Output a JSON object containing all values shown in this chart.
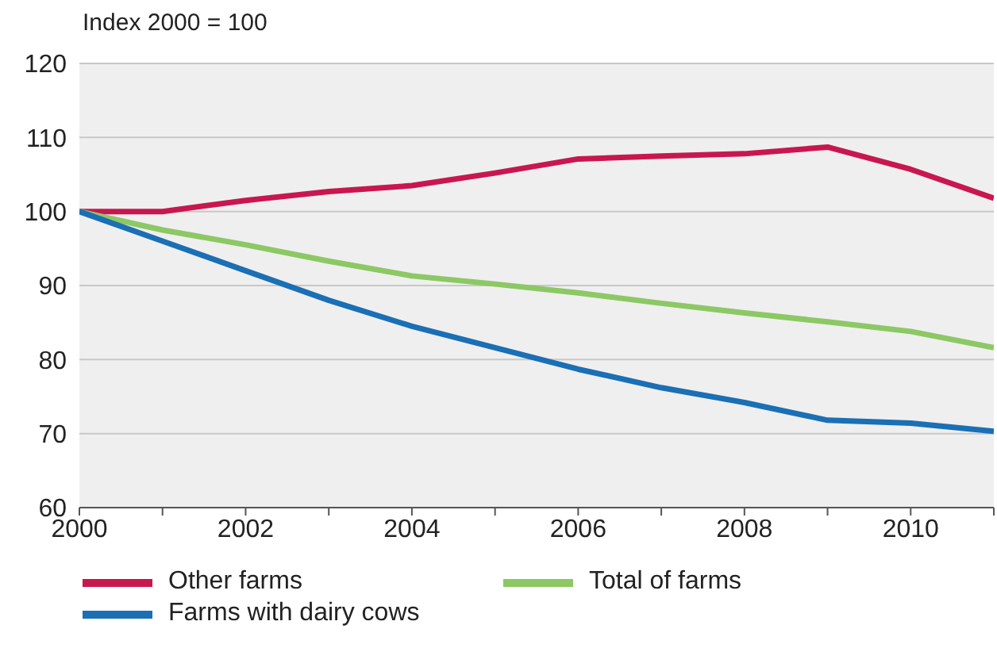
{
  "chart_data": {
    "type": "line",
    "ylabel": "Index 2000 = 100",
    "x": [
      2000,
      2001,
      2002,
      2003,
      2004,
      2005,
      2006,
      2007,
      2008,
      2009,
      2010,
      2011
    ],
    "series": [
      {
        "name": "Other farms",
        "color": "#c8174f",
        "values": [
          100,
          100,
          101.5,
          102.7,
          103.5,
          105.2,
          107.1,
          107.5,
          107.8,
          108.7,
          105.7,
          101.8
        ]
      },
      {
        "name": "Total of farms",
        "color": "#8cc864",
        "values": [
          100,
          97.5,
          95.5,
          93.3,
          91.3,
          90.2,
          89,
          87.6,
          86.3,
          85.1,
          83.8,
          81.6
        ]
      },
      {
        "name": "Farms with dairy cows",
        "color": "#1a6fb5",
        "values": [
          100,
          96,
          92,
          88,
          84.5,
          81.6,
          78.7,
          76.2,
          74.2,
          71.8,
          71.4,
          70.3
        ]
      }
    ],
    "xlim": [
      2000,
      2011
    ],
    "xticks": [
      2000,
      {
        "value": 2001,
        "label": null
      },
      2002,
      {
        "value": 2003,
        "label": null
      },
      2004,
      {
        "value": 2005,
        "label": null
      },
      2006,
      {
        "value": 2007,
        "label": null
      },
      2008,
      {
        "value": 2009,
        "label": null
      },
      2010,
      {
        "value": 2011,
        "label": null
      }
    ],
    "ylim": [
      60,
      120
    ],
    "yticks": [
      60,
      70,
      80,
      90,
      100,
      110,
      120
    ],
    "grid": "y",
    "legend": "bottom",
    "marker": "none",
    "line_style": "solid"
  }
}
